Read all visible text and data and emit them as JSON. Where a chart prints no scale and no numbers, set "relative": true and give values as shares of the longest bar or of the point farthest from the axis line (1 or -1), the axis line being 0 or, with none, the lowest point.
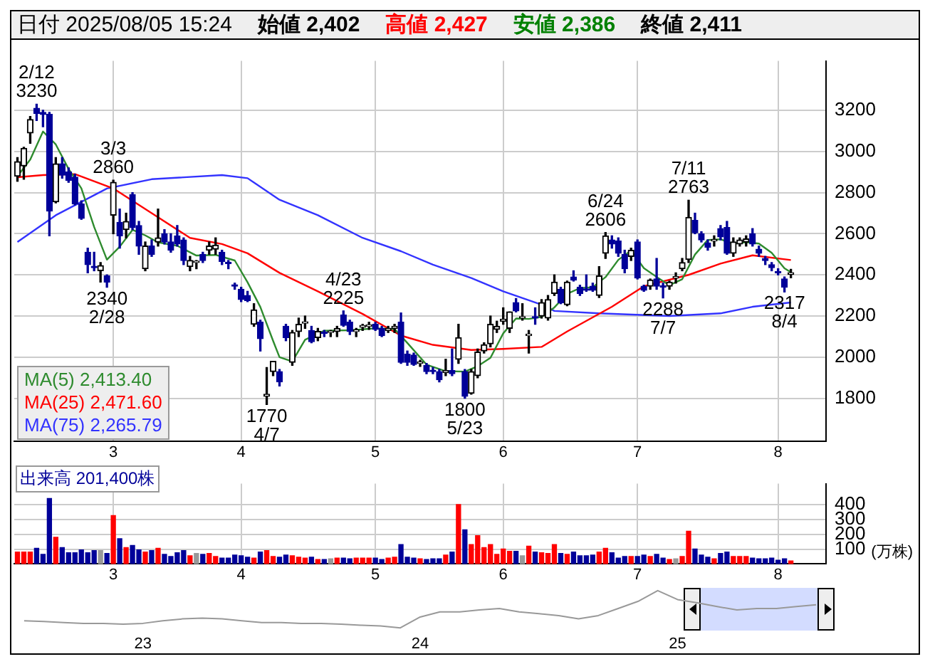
{
  "chart_data": [
    {
      "type": "candlestick",
      "title": "日付 2025/08/05 15:24",
      "annotations": [
        "始値 2,402",
        "高値 2,427",
        "安値 2,386",
        "終値 2,411",
        {
          "text": "2/12\n3230",
          "y": 3230
        },
        {
          "text": "3/3\n2860",
          "y": 2860
        },
        {
          "text": "2340\n2/28",
          "y": 2340
        },
        {
          "text": "1770\n4/7",
          "y": 1770
        },
        {
          "text": "4/23\n2225",
          "y": 2225
        },
        {
          "text": "1800\n5/23",
          "y": 1800
        },
        {
          "text": "6/24\n2606",
          "y": 2606
        },
        {
          "text": "2288\n7/7",
          "y": 2288
        },
        {
          "text": "7/11\n2763",
          "y": 2763
        },
        {
          "text": "2317\n8/4",
          "y": 2317
        }
      ],
      "categories": [
        null,
        null,
        null,
        null,
        null,
        null,
        null,
        null,
        null,
        null,
        null,
        null,
        null,
        null,
        null,
        "3",
        null,
        null,
        null,
        null,
        null,
        null,
        null,
        null,
        null,
        null,
        null,
        null,
        null,
        null,
        null,
        null,
        null,
        null,
        null,
        "4",
        null,
        null,
        null,
        null,
        null,
        null,
        null,
        null,
        null,
        null,
        null,
        null,
        null,
        null,
        null,
        null,
        null,
        null,
        null,
        null,
        "5",
        null,
        null,
        null,
        null,
        null,
        null,
        null,
        null,
        null,
        null,
        null,
        null,
        null,
        null,
        null,
        null,
        null,
        null,
        null,
        "6",
        null,
        null,
        null,
        null,
        null,
        null,
        null,
        null,
        null,
        null,
        null,
        null,
        null,
        null,
        null,
        null,
        null,
        null,
        null,
        null,
        "7",
        null,
        null,
        null,
        null,
        null,
        null,
        null,
        null,
        null,
        null,
        null,
        null,
        null,
        null,
        null,
        null,
        null,
        null,
        null,
        null,
        null,
        "8",
        null,
        null
      ],
      "ohlc": [
        [
          2880,
          2970,
          2855,
          2950
        ],
        [
          2930,
          3020,
          2865,
          3015
        ],
        [
          3090,
          3170,
          3040,
          3155
        ],
        [
          3210,
          3230,
          3150,
          3185
        ],
        [
          3190,
          3200,
          3120,
          3180
        ],
        [
          3180,
          3190,
          2590,
          2710
        ],
        [
          2755,
          2970,
          2750,
          2940
        ],
        [
          2940,
          2970,
          2870,
          2885
        ],
        [
          2900,
          2920,
          2850,
          2860
        ],
        [
          2875,
          2890,
          2740,
          2745
        ],
        [
          2745,
          2760,
          2670,
          2675
        ],
        [
          2510,
          2530,
          2410,
          2450
        ],
        [
          2440,
          2510,
          2420,
          2435
        ],
        [
          2420,
          2460,
          2365,
          2445
        ],
        [
          2395,
          2400,
          2340,
          2365
        ],
        [
          2690,
          2860,
          2600,
          2850
        ],
        [
          2655,
          2720,
          2530,
          2590
        ],
        [
          2620,
          2700,
          2580,
          2660
        ],
        [
          2790,
          2800,
          2620,
          2630
        ],
        [
          2640,
          2660,
          2500,
          2540
        ],
        [
          2430,
          2560,
          2420,
          2540
        ],
        [
          2540,
          2570,
          2490,
          2500
        ],
        [
          2560,
          2720,
          2540,
          2580
        ],
        [
          2600,
          2620,
          2550,
          2560
        ],
        [
          2560,
          2600,
          2510,
          2520
        ],
        [
          2590,
          2640,
          2540,
          2550
        ],
        [
          2570,
          2580,
          2450,
          2470
        ],
        [
          2440,
          2490,
          2420,
          2470
        ],
        [
          2460,
          2470,
          2430,
          2460
        ],
        [
          2500,
          2510,
          2460,
          2470
        ],
        [
          2520,
          2560,
          2500,
          2540
        ],
        [
          2525,
          2580,
          2500,
          2545
        ],
        [
          2510,
          2520,
          2450,
          2465
        ],
        [
          2460,
          2470,
          2430,
          2455
        ],
        [
          2350,
          2360,
          2330,
          2345
        ],
        [
          2330,
          2340,
          2270,
          2280
        ],
        [
          2300,
          2320,
          2270,
          2275
        ],
        [
          2160,
          2260,
          2150,
          2230
        ],
        [
          2170,
          2180,
          2030,
          2090
        ],
        [
          1810,
          1950,
          1770,
          1820
        ],
        [
          1930,
          1980,
          1910,
          1980
        ],
        [
          1930,
          1940,
          1860,
          1880
        ],
        [
          2150,
          2160,
          2080,
          2095
        ],
        [
          1975,
          2130,
          1960,
          2120
        ],
        [
          2125,
          2190,
          2100,
          2160
        ],
        [
          2165,
          2200,
          2140,
          2170
        ],
        [
          2130,
          2150,
          2070,
          2075
        ],
        [
          2095,
          2140,
          2080,
          2125
        ],
        [
          2120,
          2130,
          2100,
          2115
        ],
        [
          2120,
          2130,
          2100,
          2120
        ],
        [
          2125,
          2150,
          2100,
          2140
        ],
        [
          2205,
          2225,
          2150,
          2155
        ],
        [
          2170,
          2180,
          2110,
          2125
        ],
        [
          2125,
          2140,
          2100,
          2130
        ],
        [
          2145,
          2160,
          2130,
          2155
        ],
        [
          2150,
          2170,
          2135,
          2155
        ],
        [
          2160,
          2170,
          2130,
          2135
        ],
        [
          2140,
          2150,
          2100,
          2105
        ],
        [
          2130,
          2150,
          2120,
          2140
        ],
        [
          2140,
          2160,
          2120,
          2150
        ],
        [
          2170,
          2215,
          1970,
          1975
        ],
        [
          2015,
          2030,
          1960,
          1975
        ],
        [
          2010,
          2020,
          1960,
          1965
        ],
        [
          1970,
          1985,
          1955,
          1975
        ],
        [
          1960,
          1970,
          1920,
          1930
        ],
        [
          1935,
          1950,
          1920,
          1930
        ],
        [
          1930,
          1940,
          1880,
          1890
        ],
        [
          1925,
          1990,
          1910,
          1935
        ],
        [
          1935,
          2040,
          1910,
          1920
        ],
        [
          1990,
          2160,
          1970,
          2095
        ],
        [
          1930,
          1940,
          1800,
          1810
        ],
        [
          1825,
          1940,
          1820,
          1930
        ],
        [
          1910,
          2040,
          1900,
          2025
        ],
        [
          2030,
          2070,
          2020,
          2060
        ],
        [
          2065,
          2200,
          2050,
          2160
        ],
        [
          2135,
          2175,
          2120,
          2150
        ],
        [
          2175,
          2240,
          2160,
          2185
        ],
        [
          2140,
          2220,
          2120,
          2220
        ],
        [
          2265,
          2285,
          2220,
          2225
        ],
        [
          2190,
          2260,
          2180,
          2190
        ],
        [
          2105,
          2130,
          2020,
          2110
        ],
        [
          2195,
          2240,
          2160,
          2190
        ],
        [
          2200,
          2280,
          2190,
          2265
        ],
        [
          2190,
          2300,
          2180,
          2280
        ],
        [
          2310,
          2400,
          2300,
          2365
        ],
        [
          2330,
          2340,
          2260,
          2265
        ],
        [
          2255,
          2370,
          2250,
          2365
        ],
        [
          2390,
          2420,
          2370,
          2375
        ],
        [
          2340,
          2350,
          2300,
          2310
        ],
        [
          2330,
          2400,
          2320,
          2325
        ],
        [
          2345,
          2360,
          2320,
          2325
        ],
        [
          2300,
          2440,
          2290,
          2395
        ],
        [
          2505,
          2606,
          2480,
          2590
        ],
        [
          2570,
          2590,
          2530,
          2550
        ],
        [
          2565,
          2580,
          2490,
          2505
        ],
        [
          2500,
          2520,
          2410,
          2430
        ],
        [
          2490,
          2530,
          2470,
          2520
        ],
        [
          2560,
          2570,
          2380,
          2385
        ],
        [
          2345,
          2350,
          2320,
          2325
        ],
        [
          2345,
          2380,
          2330,
          2375
        ],
        [
          2380,
          2480,
          2330,
          2345
        ],
        [
          2345,
          2360,
          2288,
          2340
        ],
        [
          2345,
          2370,
          2330,
          2365
        ],
        [
          2385,
          2410,
          2360,
          2385
        ],
        [
          2430,
          2480,
          2420,
          2460
        ],
        [
          2475,
          2763,
          2460,
          2680
        ],
        [
          2665,
          2700,
          2600,
          2605
        ],
        [
          2600,
          2610,
          2560,
          2570
        ],
        [
          2555,
          2570,
          2520,
          2535
        ],
        [
          2565,
          2590,
          2540,
          2570
        ],
        [
          2625,
          2640,
          2570,
          2585
        ],
        [
          2630,
          2660,
          2500,
          2505
        ],
        [
          2505,
          2580,
          2490,
          2560
        ],
        [
          2550,
          2580,
          2540,
          2570
        ],
        [
          2560,
          2590,
          2540,
          2575
        ],
        [
          2600,
          2625,
          2540,
          2550
        ],
        [
          2525,
          2540,
          2490,
          2505
        ],
        [
          2480,
          2490,
          2450,
          2470
        ],
        [
          2450,
          2460,
          2420,
          2435
        ],
        [
          2415,
          2430,
          2400,
          2410
        ],
        [
          2380,
          2390,
          2317,
          2340
        ],
        [
          2402,
          2427,
          2386,
          2411
        ]
      ],
      "colors": [
        "#000000",
        "#000000",
        "#000000",
        "#000099",
        "#000099",
        "#000099",
        "#000000",
        "#000099",
        "#000099",
        "#000099",
        "#000099",
        "#000099",
        "#000099",
        "#000000",
        "#000099",
        "#000000",
        "#000099",
        "#000000",
        "#000099",
        "#000099",
        "#000000",
        "#000099",
        "#000000",
        "#000099",
        "#000099",
        "#000099",
        "#000099",
        "#000000",
        "#000000",
        "#000099",
        "#000000",
        "#000000",
        "#000099",
        "#000099",
        "#000099",
        "#000099",
        "#000099",
        "#000000",
        "#000099",
        "#000000",
        "#000000",
        "#000099",
        "#000099",
        "#000000",
        "#000000",
        "#000000",
        "#000099",
        "#000000",
        "#000099",
        "#000000",
        "#000000",
        "#000099",
        "#000099",
        "#000000",
        "#000000",
        "#000000",
        "#000099",
        "#000099",
        "#000000",
        "#000000",
        "#000099",
        "#000099",
        "#000099",
        "#000000",
        "#000099",
        "#000099",
        "#000099",
        "#000000",
        "#000099",
        "#000000",
        "#000099",
        "#000000",
        "#000000",
        "#000000",
        "#000000",
        "#000000",
        "#000000",
        "#000000",
        "#000099",
        "#000000",
        "#000000",
        "#000099",
        "#000000",
        "#000000",
        "#000000",
        "#000099",
        "#000000",
        "#000099",
        "#000099",
        "#000099",
        "#000099",
        "#000000",
        "#000000",
        "#000099",
        "#000099",
        "#000099",
        "#000000",
        "#000099",
        "#000099",
        "#000000",
        "#000099",
        "#000099",
        "#000000",
        "#000000",
        "#000000",
        "#000000",
        "#000099",
        "#000099",
        "#000099",
        "#000000",
        "#000099",
        "#000099",
        "#000000",
        "#000000",
        "#000000",
        "#000099",
        "#000099",
        "#000099",
        "#000099",
        "#000099",
        "#000099",
        "#000000"
      ],
      "series": [
        {
          "type": "line",
          "name": "MA(5) 2,413.40",
          "color": "#2e8b2e",
          "values": [
            2880,
            null,
            2960,
            null,
            3097,
            null,
            3034,
            null,
            2915,
            null,
            2821,
            null,
            2633,
            null,
            2474,
            null,
            2537,
            null,
            2619,
            null,
            2592,
            null,
            2558,
            null,
            null,
            2542,
            null,
            null,
            2494,
            null,
            null,
            2497,
            null,
            null,
            2470,
            null,
            2364,
            null,
            2244,
            null,
            2079,
            2000,
            null,
            1979,
            null,
            2085,
            null,
            null,
            2129,
            null,
            null,
            null,
            2131,
            null,
            null,
            null,
            2140,
            null,
            null,
            2137,
            null,
            2069,
            null,
            null,
            1964,
            null,
            null,
            1932,
            null,
            null,
            1930,
            null,
            1956,
            null,
            1997,
            null,
            2116,
            null,
            2188,
            null,
            2186,
            null,
            2196,
            null,
            2242,
            null,
            2308,
            null,
            2336,
            null,
            2340,
            null,
            2389,
            null,
            2473,
            null,
            2519,
            null,
            2433,
            null,
            2390,
            null,
            2350,
            null,
            2379,
            null,
            2499,
            null,
            2570,
            null,
            2573,
            null,
            2551,
            null,
            2559,
            null,
            2552,
            null,
            2507,
            null,
            2432,
            2413
          ]
        },
        {
          "type": "line",
          "name": "MA(25) 2,471.60",
          "color": "#ff0000",
          "values": [
            2875,
            null,
            null,
            null,
            2885,
            null,
            null,
            null,
            null,
            2890,
            null,
            null,
            null,
            null,
            null,
            2820,
            null,
            null,
            null,
            null,
            null,
            2700,
            null,
            null,
            null,
            null,
            null,
            2580,
            null,
            null,
            null,
            null,
            2550,
            null,
            null,
            null,
            2505,
            null,
            null,
            null,
            null,
            2410,
            null,
            null,
            null,
            null,
            null,
            2320,
            null,
            null,
            null,
            null,
            null,
            null,
            2210,
            null,
            null,
            null,
            null,
            null,
            2105,
            null,
            null,
            null,
            null,
            2060,
            null,
            null,
            null,
            null,
            null,
            2035,
            null,
            null,
            null,
            null,
            2040,
            null,
            null,
            null,
            null,
            null,
            2050,
            null,
            null,
            null,
            2125,
            null,
            null,
            null,
            null,
            null,
            null,
            2245,
            null,
            null,
            null,
            null,
            2345,
            null,
            null,
            null,
            null,
            null,
            null,
            2400,
            null,
            null,
            null,
            null,
            2455,
            null,
            null,
            null,
            null,
            2495,
            null,
            null,
            null,
            null,
            null,
            2472
          ]
        },
        {
          "type": "line",
          "name": "MA(75) 2,265.79",
          "color": "#3333ff",
          "values": [
            2560,
            null,
            null,
            null,
            null,
            null,
            2690,
            null,
            null,
            null,
            null,
            null,
            null,
            null,
            2820,
            null,
            null,
            null,
            null,
            null,
            null,
            2865,
            null,
            null,
            null,
            null,
            null,
            null,
            null,
            null,
            null,
            null,
            2885,
            null,
            null,
            null,
            2870,
            null,
            null,
            null,
            null,
            2765,
            null,
            null,
            null,
            null,
            null,
            2690,
            null,
            null,
            null,
            null,
            null,
            null,
            2580,
            null,
            null,
            null,
            null,
            null,
            2515,
            null,
            null,
            null,
            null,
            2450,
            null,
            null,
            null,
            null,
            null,
            2385,
            null,
            null,
            null,
            null,
            2320,
            null,
            null,
            null,
            null,
            null,
            2255,
            null,
            2225,
            null,
            null,
            null,
            null,
            null,
            null,
            2213,
            null,
            null,
            null,
            null,
            null,
            null,
            null,
            null,
            null,
            null,
            2200,
            null,
            null,
            null,
            null,
            null,
            null,
            null,
            2213,
            null,
            null,
            null,
            null,
            2245,
            null,
            null,
            null,
            null,
            null,
            2266
          ]
        }
      ],
      "ylim": [
        1590,
        3440
      ],
      "yticks": [
        1800,
        2000,
        2200,
        2400,
        2600,
        2800,
        3000,
        3200
      ],
      "grid": true,
      "legend": "bottom left"
    },
    {
      "type": "bar",
      "title": "出来高 201,400株",
      "ylabel": "(万株)",
      "categories": [
        null,
        null,
        null,
        null,
        null,
        null,
        null,
        null,
        null,
        null,
        null,
        null,
        null,
        null,
        null,
        "3",
        null,
        null,
        null,
        null,
        null,
        null,
        null,
        null,
        null,
        null,
        null,
        null,
        null,
        null,
        null,
        null,
        null,
        null,
        null,
        "4",
        null,
        null,
        null,
        null,
        null,
        null,
        null,
        null,
        null,
        null,
        null,
        null,
        null,
        null,
        null,
        null,
        null,
        null,
        null,
        null,
        "5",
        null,
        null,
        null,
        null,
        null,
        null,
        null,
        null,
        null,
        null,
        null,
        null,
        null,
        null,
        null,
        null,
        null,
        null,
        null,
        "6",
        null,
        null,
        null,
        null,
        null,
        null,
        null,
        null,
        null,
        null,
        null,
        null,
        null,
        null,
        null,
        null,
        null,
        null,
        null,
        null,
        "7",
        null,
        null,
        null,
        null,
        null,
        null,
        null,
        null,
        null,
        null,
        null,
        null,
        null,
        null,
        null,
        null,
        null,
        null,
        null,
        null,
        null,
        "8",
        null,
        null
      ],
      "values": [
        80,
        80,
        80,
        105,
        65,
        440,
        180,
        110,
        75,
        75,
        95,
        75,
        90,
        90,
        70,
        325,
        170,
        110,
        125,
        95,
        80,
        90,
        105,
        65,
        50,
        75,
        90,
        55,
        70,
        65,
        70,
        50,
        40,
        40,
        60,
        55,
        45,
        40,
        80,
        90,
        50,
        45,
        60,
        55,
        45,
        40,
        45,
        30,
        30,
        35,
        40,
        40,
        35,
        40,
        40,
        40,
        40,
        30,
        40,
        45,
        130,
        45,
        40,
        35,
        30,
        35,
        35,
        60,
        80,
        400,
        230,
        130,
        190,
        110,
        130,
        65,
        100,
        85,
        85,
        55,
        120,
        80,
        75,
        70,
        130,
        70,
        65,
        80,
        55,
        55,
        60,
        80,
        105,
        75,
        40,
        50,
        50,
        50,
        60,
        50,
        65,
        40,
        30,
        35,
        50,
        220,
        100,
        60,
        45,
        35,
        70,
        80,
        50,
        50,
        50,
        40,
        35,
        35,
        40,
        25,
        35,
        20
      ],
      "colors": [
        "#ff0000",
        "#ff0000",
        "#ff0000",
        "#000099",
        "#000099",
        "#000099",
        "#ff0000",
        "#000099",
        "#000099",
        "#000099",
        "#000099",
        "#000099",
        "#000099",
        "#999999",
        "#000099",
        "#ff0000",
        "#000099",
        "#ff0000",
        "#000099",
        "#000099",
        "#ff0000",
        "#000099",
        "#ff0000",
        "#000099",
        "#000099",
        "#000099",
        "#000099",
        "#ff0000",
        "#999999",
        "#000099",
        "#ff0000",
        "#ff0000",
        "#000099",
        "#000099",
        "#000099",
        "#000099",
        "#000099",
        "#ff0000",
        "#000099",
        "#ff0000",
        "#ff0000",
        "#000099",
        "#000099",
        "#ff0000",
        "#ff0000",
        "#ff0000",
        "#000099",
        "#ff0000",
        "#000099",
        "#999999",
        "#ff0000",
        "#000099",
        "#000099",
        "#ff0000",
        "#ff0000",
        "#ff0000",
        "#000099",
        "#000099",
        "#ff0000",
        "#ff0000",
        "#000099",
        "#000099",
        "#000099",
        "#ff0000",
        "#000099",
        "#000099",
        "#000099",
        "#ff0000",
        "#000099",
        "#ff0000",
        "#000099",
        "#ff0000",
        "#ff0000",
        "#ff0000",
        "#ff0000",
        "#ff0000",
        "#ff0000",
        "#ff0000",
        "#000099",
        "#999999",
        "#ff0000",
        "#000099",
        "#ff0000",
        "#ff0000",
        "#ff0000",
        "#000099",
        "#ff0000",
        "#000099",
        "#000099",
        "#000099",
        "#000099",
        "#ff0000",
        "#ff0000",
        "#000099",
        "#000099",
        "#000099",
        "#ff0000",
        "#000099",
        "#000099",
        "#ff0000",
        "#000099",
        "#000099",
        "#ff0000",
        "#999999",
        "#ff0000",
        "#ff0000",
        "#000099",
        "#000099",
        "#000099",
        "#ff0000",
        "#000099",
        "#000099",
        "#ff0000",
        "#ff0000",
        "#ff0000",
        "#000099",
        "#000099",
        "#000099",
        "#000099",
        "#000099",
        "#000099",
        "#ff0000"
      ],
      "ylim": [
        0,
        540
      ],
      "yticks": [
        100,
        200,
        300,
        400
      ],
      "grid": true
    },
    {
      "type": "line",
      "relative": true,
      "color": "#999999",
      "categories": [
        null,
        null,
        null,
        null,
        null,
        null,
        "23",
        null,
        null,
        null,
        null,
        null,
        null,
        null,
        null,
        null,
        null,
        null,
        null,
        null,
        "24",
        null,
        null,
        null,
        null,
        null,
        null,
        null,
        null,
        null,
        null,
        null,
        null,
        "25",
        null,
        null,
        null,
        null,
        null,
        null,
        null
      ],
      "values": [
        0.19,
        0.17,
        0.14,
        0.12,
        0.12,
        0.1,
        0.12,
        0.19,
        0.24,
        0.26,
        0.24,
        0.19,
        0.14,
        0.14,
        0.12,
        0.12,
        0.1,
        0.07,
        0.05,
        0,
        0.29,
        0.43,
        0.43,
        0.48,
        0.52,
        0.43,
        0.38,
        0.33,
        0.24,
        0.33,
        0.52,
        0.71,
        1,
        0.76,
        0.67,
        0.57,
        0.48,
        0.52,
        0.52,
        0.57,
        0.62
      ]
    }
  ]
}
